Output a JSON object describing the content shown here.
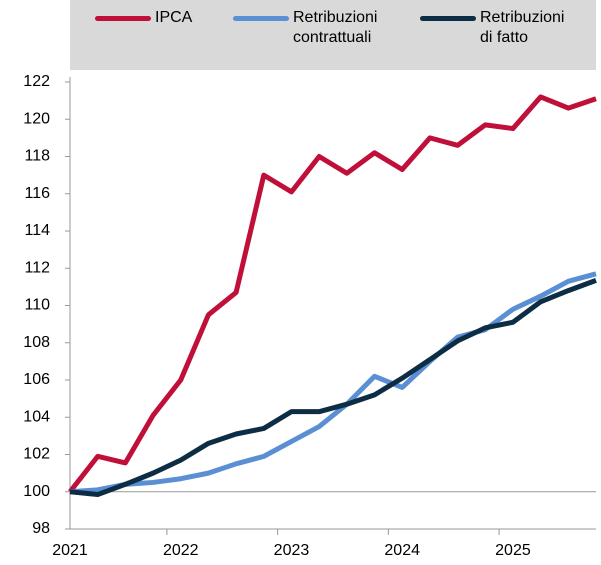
{
  "chart_data": {
    "type": "line",
    "categories": [
      "2021",
      null,
      null,
      null,
      "2022",
      null,
      null,
      null,
      "2023",
      null,
      null,
      null,
      "2024",
      null,
      null,
      null,
      "2025",
      null,
      null,
      null
    ],
    "series": [
      {
        "name": "IPCA",
        "color": "#c0103a",
        "values": [
          100,
          101.9,
          101.55,
          104.1,
          106,
          109.5,
          110.7,
          117,
          116.1,
          118,
          117.1,
          118.2,
          117.3,
          119,
          118.6,
          119.7,
          119.5,
          121.2,
          120.6,
          121.1
        ]
      },
      {
        "name": "Retribuzioni contrattuali",
        "color": "#5b8fd4",
        "values": [
          100,
          100.1,
          100.4,
          100.5,
          100.7,
          101,
          101.5,
          101.9,
          102.7,
          103.5,
          104.7,
          106.2,
          105.6,
          107,
          108.3,
          108.7,
          109.8,
          110.5,
          111.3,
          111.7
        ]
      },
      {
        "name": "Retribuzioni di fatto",
        "color": "#0d2d45",
        "values": [
          100,
          99.85,
          100.4,
          101,
          101.7,
          102.6,
          103.1,
          103.4,
          104.3,
          104.3,
          104.7,
          105.2,
          106.1,
          107.1,
          108.1,
          108.8,
          109.1,
          110.2,
          110.8,
          111.35
        ]
      }
    ],
    "ylim": [
      98,
      122
    ],
    "yticks": [
      98,
      100,
      102,
      104,
      106,
      108,
      110,
      112,
      114,
      116,
      118,
      120,
      122
    ],
    "base_line": 100,
    "legend": "top"
  }
}
